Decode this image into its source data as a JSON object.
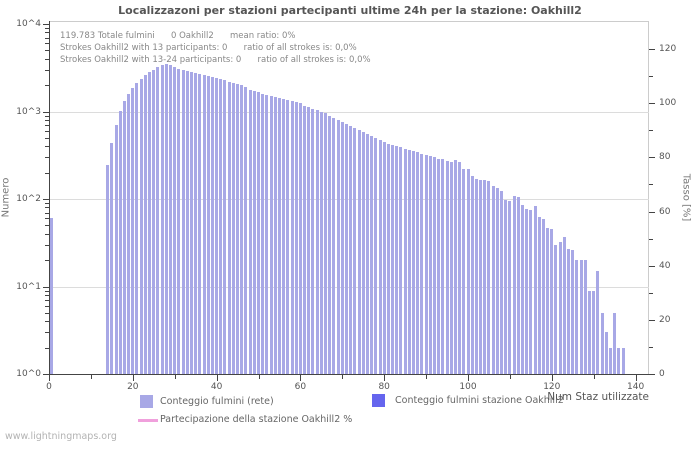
{
  "title": "Localizzazoni per stazioni partecipanti ultime 24h per la stazione: Oakhill2",
  "watermark": "www.lightningmaps.org",
  "annotation": {
    "line1": "119.783 Totale fulmini      0 Oakhill2      mean ratio: 0%",
    "line2": "Strokes Oakhill2 with 13 participants: 0      ratio of all strokes is: 0,0%",
    "line3": "Strokes Oakhill2 with 13-24 participants: 0      ratio of all strokes is: 0,0%"
  },
  "axes": {
    "left_label": "Numero",
    "right_label": "Tasso [%]",
    "x_label": "Num Staz utilizzate",
    "left_ticks": [
      "10^4",
      "10^3",
      "10^2",
      "10^1",
      "10^0"
    ],
    "right_ticks": [
      0,
      20,
      40,
      60,
      80,
      100,
      120
    ],
    "x_ticks": [
      0,
      20,
      40,
      60,
      80,
      100,
      120,
      140
    ]
  },
  "legend": [
    {
      "type": "box",
      "color": "#a8a8e6",
      "label": "Conteggio fulmini (rete)"
    },
    {
      "type": "box",
      "color": "#6565ee",
      "label": "Conteggio fulmini stazione Oakhill2"
    },
    {
      "type": "line",
      "color": "#f0a0dc",
      "label": "Partecipazione della stazione Oakhill2 %"
    }
  ],
  "colors": {
    "bar_network": "#a8a8e6",
    "bar_station": "#6565ee",
    "participation_line": "#f0a0dc",
    "grid": "#dcdcdc",
    "axis": "#444444",
    "text": "#555555"
  },
  "chart_data": {
    "type": "bar",
    "title": "Localizzazoni per stazioni partecipanti ultime 24h per la stazione: Oakhill2",
    "xlabel": "Num Staz utilizzate",
    "ylabel": "Numero",
    "y2label": "Tasso [%]",
    "y_scale": "log10",
    "ylim": [
      1,
      10000
    ],
    "y2lim": [
      0,
      130
    ],
    "xlim": [
      0,
      143
    ],
    "grid": "horizontal-decades",
    "legend_position": "bottom",
    "total_strokes": 119783,
    "station_strokes": 0,
    "mean_ratio_pct": 0,
    "x": [
      0,
      14,
      15,
      16,
      17,
      18,
      19,
      20,
      21,
      22,
      23,
      24,
      25,
      26,
      27,
      28,
      29,
      30,
      31,
      32,
      33,
      34,
      35,
      36,
      37,
      38,
      39,
      40,
      41,
      42,
      43,
      44,
      45,
      46,
      47,
      48,
      49,
      50,
      51,
      52,
      53,
      54,
      55,
      56,
      57,
      58,
      59,
      60,
      61,
      62,
      63,
      64,
      65,
      66,
      67,
      68,
      69,
      70,
      71,
      72,
      73,
      74,
      75,
      76,
      77,
      78,
      79,
      80,
      81,
      82,
      83,
      84,
      85,
      86,
      87,
      88,
      89,
      90,
      91,
      92,
      93,
      94,
      95,
      96,
      97,
      98,
      99,
      100,
      101,
      102,
      103,
      104,
      105,
      106,
      107,
      108,
      109,
      110,
      111,
      112,
      113,
      114,
      115,
      116,
      117,
      118,
      119,
      120,
      121,
      122,
      123,
      124,
      125,
      126,
      127,
      128,
      129,
      130,
      131,
      132,
      133,
      134,
      135,
      136,
      137,
      139
    ],
    "network_counts": [
      60,
      245,
      440,
      700,
      1020,
      1330,
      1600,
      1870,
      2130,
      2370,
      2640,
      2860,
      3010,
      3260,
      3440,
      3500,
      3440,
      3260,
      3100,
      3010,
      2930,
      2860,
      2780,
      2700,
      2640,
      2560,
      2490,
      2430,
      2370,
      2280,
      2200,
      2130,
      2060,
      1990,
      1930,
      1740,
      1700,
      1650,
      1600,
      1560,
      1510,
      1470,
      1430,
      1390,
      1350,
      1310,
      1270,
      1240,
      1170,
      1140,
      1070,
      1040,
      1000,
      950,
      900,
      850,
      800,
      760,
      720,
      685,
      650,
      615,
      585,
      555,
      530,
      500,
      475,
      450,
      430,
      415,
      400,
      390,
      375,
      360,
      350,
      340,
      330,
      320,
      310,
      300,
      290,
      285,
      275,
      265,
      277,
      265,
      222,
      220,
      185,
      171,
      167,
      165,
      160,
      142,
      133,
      124,
      98,
      95,
      107,
      105,
      85,
      77,
      74,
      84,
      62,
      59,
      47,
      45,
      30,
      32,
      37,
      27,
      26,
      20,
      20,
      20,
      9,
      9,
      15,
      5,
      3,
      2,
      5,
      2,
      2,
      1
    ],
    "station_counts_note": "station series is all zero (no dark bars visible)",
    "participation_pct_note": "participation line is 0% everywhere (not visible on plot)"
  }
}
